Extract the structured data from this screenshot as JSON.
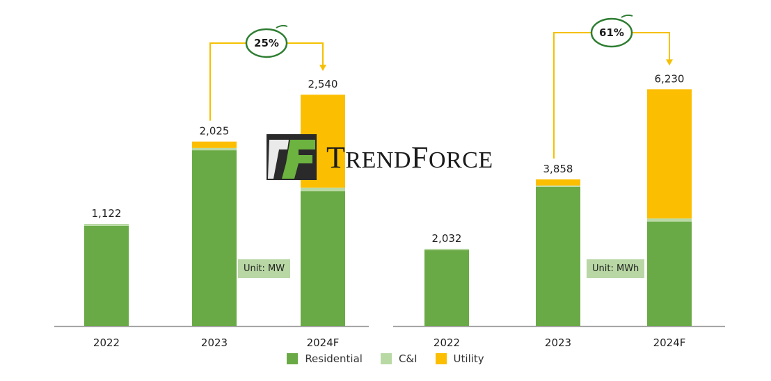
{
  "colors": {
    "residential": "#6aaa46",
    "ci": "#b8d9a4",
    "utility": "#fcbe00",
    "arrow": "#f5c000",
    "circle": "#2e7d32",
    "axis": "#9a9a9a"
  },
  "watermark": {
    "text_big_1": "T",
    "text_small_1": "REND",
    "text_big_2": "F",
    "text_small_2": "ORCE"
  },
  "legend": [
    {
      "key": "residential",
      "label": "Residential"
    },
    {
      "key": "ci",
      "label": "C&I"
    },
    {
      "key": "utility",
      "label": "Utility"
    }
  ],
  "chart_data": [
    {
      "type": "bar",
      "stacked": true,
      "unit_label": "Unit: MW",
      "categories": [
        "2022",
        "2023",
        "2024F"
      ],
      "series": [
        {
          "name": "Residential",
          "values": [
            1100,
            1930,
            1480
          ]
        },
        {
          "name": "C&I",
          "values": [
            22,
            25,
            40
          ]
        },
        {
          "name": "Utility",
          "values": [
            0,
            70,
            1020
          ]
        }
      ],
      "totals": [
        "1,122",
        "2,025",
        "2,540"
      ],
      "growth": {
        "label": "25%",
        "from": "2023",
        "to": "2024F"
      },
      "ylim": [
        0,
        2900
      ]
    },
    {
      "type": "bar",
      "stacked": true,
      "unit_label": "Unit: MWh",
      "categories": [
        "2022",
        "2023",
        "2024F"
      ],
      "series": [
        {
          "name": "Residential",
          "values": [
            2000,
            3660,
            2750
          ]
        },
        {
          "name": "C&I",
          "values": [
            32,
            38,
            80
          ]
        },
        {
          "name": "Utility",
          "values": [
            0,
            160,
            3400
          ]
        }
      ],
      "totals": [
        "2,032",
        "3,858",
        "6,230"
      ],
      "growth": {
        "label": "61%",
        "from": "2023",
        "to": "2024F"
      },
      "ylim": [
        0,
        6950
      ]
    }
  ]
}
